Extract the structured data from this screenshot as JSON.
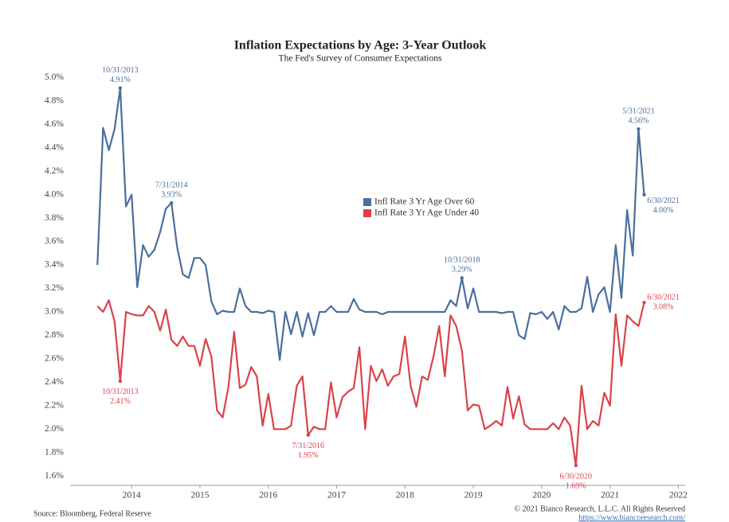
{
  "chart_data": {
    "type": "line",
    "title": "Inflation Expectations by Age: 3-Year Outlook",
    "subtitle": "The Fed's Survey of Consumer Expectations",
    "source": "Source: Bloomberg, Federal Reserve",
    "copyright": "© 2021 Bianco Research, L.L.C. All Rights Reserved",
    "url": "https://www.biancoresearch.com/",
    "legend_position": "center",
    "xlim": [
      2013.1,
      2022.1
    ],
    "xticks": [
      2014,
      2015,
      2016,
      2017,
      2018,
      2019,
      2020,
      2021,
      2022
    ],
    "ylim": [
      1.52,
      5.05
    ],
    "yticks": [
      {
        "value": 1.6,
        "label": "1.6%"
      },
      {
        "value": 1.8,
        "label": "1.8%"
      },
      {
        "value": 2.0,
        "label": "2.0%"
      },
      {
        "value": 2.2,
        "label": "2.2%"
      },
      {
        "value": 2.4,
        "label": "2.4%"
      },
      {
        "value": 2.6,
        "label": "2.6%"
      },
      {
        "value": 2.8,
        "label": "2.8%"
      },
      {
        "value": 3.0,
        "label": "3.0%"
      },
      {
        "value": 3.2,
        "label": "3.2%"
      },
      {
        "value": 3.4,
        "label": "3.4%"
      },
      {
        "value": 3.6,
        "label": "3.6%"
      },
      {
        "value": 3.8,
        "label": "3.8%"
      },
      {
        "value": 4.0,
        "label": "4.0%"
      },
      {
        "value": 4.2,
        "label": "4.2%"
      },
      {
        "value": 4.4,
        "label": "4.4%"
      },
      {
        "value": 4.6,
        "label": "4.6%"
      },
      {
        "value": 4.8,
        "label": "4.8%"
      },
      {
        "value": 5.0,
        "label": "5.0%"
      }
    ],
    "x": [
      2013.5,
      2013.583,
      2013.667,
      2013.75,
      2013.833,
      2013.917,
      2014,
      2014.083,
      2014.167,
      2014.25,
      2014.333,
      2014.417,
      2014.5,
      2014.583,
      2014.667,
      2014.75,
      2014.833,
      2014.917,
      2015,
      2015.083,
      2015.167,
      2015.25,
      2015.333,
      2015.417,
      2015.5,
      2015.583,
      2015.667,
      2015.75,
      2015.833,
      2015.917,
      2016,
      2016.083,
      2016.167,
      2016.25,
      2016.333,
      2016.417,
      2016.5,
      2016.583,
      2016.667,
      2016.75,
      2016.833,
      2016.917,
      2017,
      2017.083,
      2017.167,
      2017.25,
      2017.333,
      2017.417,
      2017.5,
      2017.583,
      2017.667,
      2017.75,
      2017.833,
      2017.917,
      2018,
      2018.083,
      2018.167,
      2018.25,
      2018.333,
      2018.417,
      2018.5,
      2018.583,
      2018.667,
      2018.75,
      2018.833,
      2018.917,
      2019,
      2019.083,
      2019.167,
      2019.25,
      2019.333,
      2019.417,
      2019.5,
      2019.583,
      2019.667,
      2019.75,
      2019.833,
      2019.917,
      2020,
      2020.083,
      2020.167,
      2020.25,
      2020.333,
      2020.417,
      2020.5,
      2020.583,
      2020.667,
      2020.75,
      2020.833,
      2020.917,
      2021,
      2021.083,
      2021.167,
      2021.25,
      2021.333,
      2021.417,
      2021.5
    ],
    "series": [
      {
        "name": "Infl Rate 3 Yr Age Over 60",
        "color": "#4a6f9c",
        "values": [
          3.4,
          4.57,
          4.38,
          4.56,
          4.91,
          3.9,
          4.0,
          3.21,
          3.57,
          3.47,
          3.53,
          3.68,
          3.88,
          3.93,
          3.55,
          3.32,
          3.29,
          3.46,
          3.46,
          3.4,
          3.09,
          2.98,
          3.01,
          3.0,
          3.0,
          3.2,
          3.05,
          3.0,
          3.0,
          2.99,
          3.01,
          3.0,
          2.59,
          3.0,
          2.81,
          3.0,
          2.79,
          2.99,
          2.8,
          3.0,
          3.0,
          3.05,
          3.0,
          3.0,
          3.0,
          3.11,
          3.02,
          3.0,
          3.0,
          3.0,
          2.98,
          3.0,
          3.0,
          3.0,
          3.0,
          3.0,
          3.0,
          3.0,
          3.0,
          3.0,
          3.0,
          3.0,
          3.1,
          3.05,
          3.29,
          3.03,
          3.2,
          3.0,
          3.0,
          3.0,
          3.0,
          2.99,
          3.0,
          3.0,
          2.8,
          2.77,
          2.99,
          2.98,
          3.0,
          2.94,
          3.0,
          2.85,
          3.05,
          3.0,
          3.0,
          3.03,
          3.3,
          3.0,
          3.15,
          3.21,
          3.0,
          3.57,
          3.12,
          3.87,
          3.48,
          4.56,
          4.0
        ],
        "date_labels": [
          null,
          null,
          null,
          null,
          "10/31/2013",
          null,
          null,
          null,
          null,
          null,
          null,
          null,
          null,
          "7/31/2014",
          null,
          null,
          null,
          null,
          null,
          null,
          null,
          null,
          null,
          null,
          null,
          null,
          null,
          null,
          null,
          null,
          null,
          null,
          null,
          null,
          null,
          null,
          null,
          null,
          null,
          null,
          null,
          null,
          null,
          null,
          null,
          null,
          null,
          null,
          null,
          null,
          null,
          null,
          null,
          null,
          null,
          null,
          null,
          null,
          null,
          null,
          null,
          null,
          null,
          null,
          "10/31/2018",
          null,
          null,
          null,
          null,
          null,
          null,
          null,
          null,
          null,
          null,
          null,
          null,
          null,
          null,
          null,
          null,
          null,
          null,
          null,
          null,
          null,
          null,
          null,
          null,
          null,
          null,
          null,
          null,
          null,
          null,
          "5/31/2021",
          "6/30/2021"
        ],
        "value_labels": [
          null,
          null,
          null,
          null,
          "4.91%",
          null,
          null,
          null,
          null,
          null,
          null,
          null,
          null,
          "3.93%",
          null,
          null,
          null,
          null,
          null,
          null,
          null,
          null,
          null,
          null,
          null,
          null,
          null,
          null,
          null,
          null,
          null,
          null,
          null,
          null,
          null,
          null,
          null,
          null,
          null,
          null,
          null,
          null,
          null,
          null,
          null,
          null,
          null,
          null,
          null,
          null,
          null,
          null,
          null,
          null,
          null,
          null,
          null,
          null,
          null,
          null,
          null,
          null,
          null,
          null,
          "3.29%",
          null,
          null,
          null,
          null,
          null,
          null,
          null,
          null,
          null,
          null,
          null,
          null,
          null,
          null,
          null,
          null,
          null,
          null,
          null,
          null,
          null,
          null,
          null,
          null,
          null,
          null,
          null,
          null,
          null,
          null,
          "4.56%",
          "4.00%"
        ]
      },
      {
        "name": "Infl Rate 3 Yr Age Under 40",
        "color": "#d9434a",
        "values": [
          3.05,
          3.0,
          3.1,
          2.92,
          2.41,
          3.0,
          2.98,
          2.97,
          2.97,
          3.05,
          3.0,
          2.84,
          3.02,
          2.76,
          2.71,
          2.79,
          2.71,
          2.71,
          2.54,
          2.77,
          2.62,
          2.16,
          2.1,
          2.36,
          2.83,
          2.35,
          2.38,
          2.53,
          2.45,
          2.03,
          2.3,
          2.0,
          2.0,
          2.0,
          2.03,
          2.37,
          2.45,
          1.95,
          2.02,
          2.0,
          2.0,
          2.4,
          2.1,
          2.27,
          2.32,
          2.35,
          2.7,
          2.0,
          2.54,
          2.41,
          2.51,
          2.37,
          2.45,
          2.47,
          2.79,
          2.37,
          2.19,
          2.45,
          2.42,
          2.62,
          2.88,
          2.45,
          2.97,
          2.88,
          2.67,
          2.16,
          2.21,
          2.2,
          2.0,
          2.03,
          2.07,
          2.03,
          2.36,
          2.09,
          2.28,
          2.04,
          2.0,
          2.0,
          2.0,
          2.0,
          2.05,
          2.0,
          2.1,
          2.03,
          1.69,
          2.37,
          2.0,
          2.07,
          2.03,
          2.31,
          2.2,
          2.98,
          2.54,
          2.97,
          2.92,
          2.88,
          3.08
        ],
        "date_labels": [
          null,
          null,
          null,
          null,
          "10/31/2013",
          null,
          null,
          null,
          null,
          null,
          null,
          null,
          null,
          null,
          null,
          null,
          null,
          null,
          null,
          null,
          null,
          null,
          null,
          null,
          null,
          null,
          null,
          null,
          null,
          null,
          null,
          null,
          null,
          null,
          null,
          null,
          null,
          "7/31/2016",
          null,
          null,
          null,
          null,
          null,
          null,
          null,
          null,
          null,
          null,
          null,
          null,
          null,
          null,
          null,
          null,
          null,
          null,
          null,
          null,
          null,
          null,
          null,
          null,
          null,
          null,
          null,
          null,
          null,
          null,
          null,
          null,
          null,
          null,
          null,
          null,
          null,
          null,
          null,
          null,
          null,
          null,
          null,
          null,
          null,
          null,
          "6/30/2020",
          null,
          null,
          null,
          null,
          null,
          null,
          null,
          null,
          null,
          null,
          null,
          "6/30/2021"
        ],
        "value_labels": [
          null,
          null,
          null,
          null,
          "2.41%",
          null,
          null,
          null,
          null,
          null,
          null,
          null,
          null,
          null,
          null,
          null,
          null,
          null,
          null,
          null,
          null,
          null,
          null,
          null,
          null,
          null,
          null,
          null,
          null,
          null,
          null,
          null,
          null,
          null,
          null,
          null,
          null,
          "1.95%",
          null,
          null,
          null,
          null,
          null,
          null,
          null,
          null,
          null,
          null,
          null,
          null,
          null,
          null,
          null,
          null,
          null,
          null,
          null,
          null,
          null,
          null,
          null,
          null,
          null,
          null,
          null,
          null,
          null,
          null,
          null,
          null,
          null,
          null,
          null,
          null,
          null,
          null,
          null,
          null,
          null,
          null,
          null,
          null,
          null,
          null,
          "1.69%",
          null,
          null,
          null,
          null,
          null,
          null,
          null,
          null,
          null,
          null,
          null,
          "3.08%"
        ]
      }
    ]
  }
}
